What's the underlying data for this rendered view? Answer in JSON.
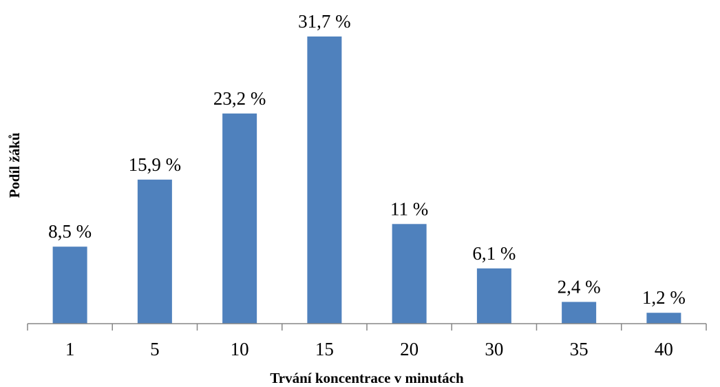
{
  "chart_data": {
    "type": "bar",
    "title": "",
    "xlabel": "Trvání koncentrace v minutách",
    "ylabel": "Podíl žáků",
    "categories": [
      "1",
      "5",
      "10",
      "15",
      "20",
      "30",
      "35",
      "40"
    ],
    "values": [
      8.5,
      15.9,
      23.2,
      31.7,
      11,
      6.1,
      2.4,
      1.2
    ],
    "data_labels": [
      "8,5 %",
      "15,9 %",
      "23,2 %",
      "31,7 %",
      "11 %",
      "6,1 %",
      "2,4 %",
      "1,2 %"
    ],
    "ylim": [
      0,
      31.7
    ],
    "grid": false,
    "legend": "none",
    "bar_color": "#4f81bd",
    "axis_color": "#868686"
  }
}
